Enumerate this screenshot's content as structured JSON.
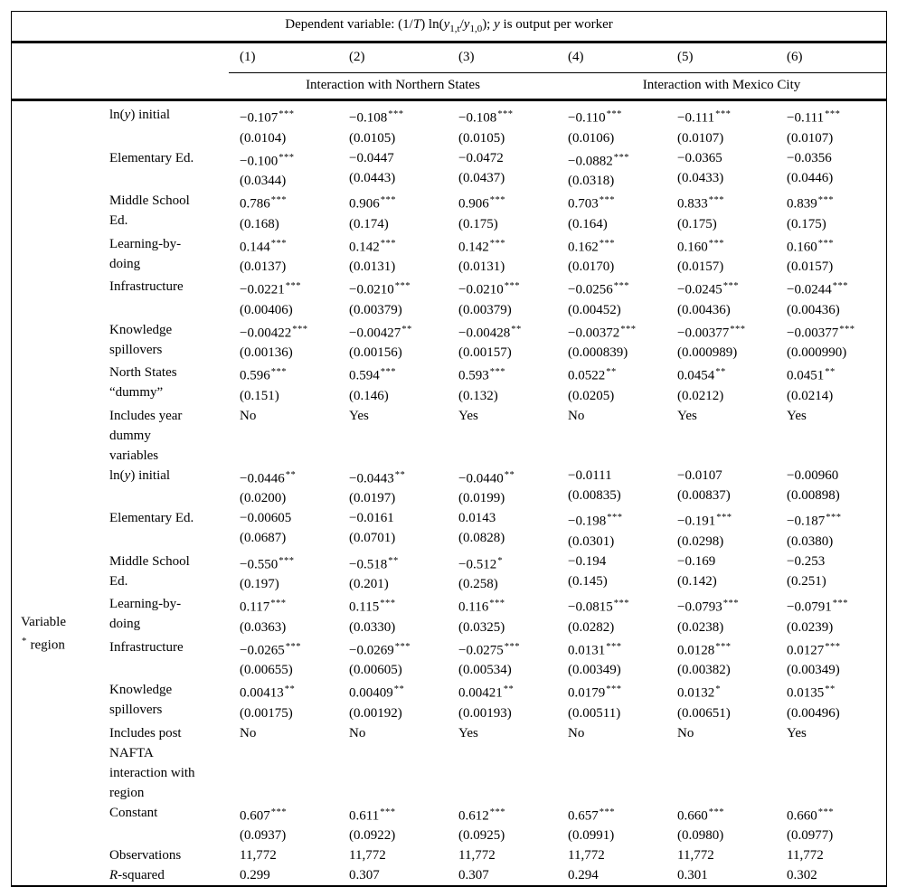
{
  "table": {
    "title_segments": [
      "Dependent variable: (1/",
      {
        "i": "T"
      },
      ") ln(",
      {
        "i": "y"
      },
      {
        "sub": "1,t"
      },
      "/",
      {
        "i": "y"
      },
      {
        "sub": "1,0"
      },
      "); ",
      {
        "i": "y"
      },
      " is output per worker"
    ],
    "column_numbers": [
      "(1)",
      "(2)",
      "(3)",
      "(4)",
      "(5)",
      "(6)"
    ],
    "group_headers": [
      {
        "label": "Interaction with Northern States",
        "span": 3
      },
      {
        "label": "Interaction with Mexico City",
        "span": 3
      }
    ],
    "sections": [
      {
        "side_label_lines": [],
        "rows": [
          {
            "kind": "coef",
            "label_lines": [
              [
                "ln(",
                {
                  "i": "y"
                },
                ") initial"
              ]
            ],
            "coefs": [
              {
                "v": "−0.107",
                "stars": "***"
              },
              {
                "v": "−0.108",
                "stars": "***"
              },
              {
                "v": "−0.108",
                "stars": "***"
              },
              {
                "v": "−0.110",
                "stars": "***"
              },
              {
                "v": "−0.111",
                "stars": "***"
              },
              {
                "v": "−0.111",
                "stars": "***"
              }
            ],
            "ses": [
              "(0.0104)",
              "(0.0105)",
              "(0.0105)",
              "(0.0106)",
              "(0.0107)",
              "(0.0107)"
            ]
          },
          {
            "kind": "coef",
            "label_lines": [
              "Elementary Ed."
            ],
            "coefs": [
              {
                "v": "−0.100",
                "stars": "***"
              },
              {
                "v": "−0.0447",
                "stars": ""
              },
              {
                "v": "−0.0472",
                "stars": ""
              },
              {
                "v": "−0.0882",
                "stars": "***"
              },
              {
                "v": "−0.0365",
                "stars": ""
              },
              {
                "v": "−0.0356",
                "stars": ""
              }
            ],
            "ses": [
              "(0.0344)",
              "(0.0443)",
              "(0.0437)",
              "(0.0318)",
              "(0.0433)",
              "(0.0446)"
            ]
          },
          {
            "kind": "coef",
            "label_lines": [
              "Middle School",
              "Ed."
            ],
            "coefs": [
              {
                "v": "0.786",
                "stars": "***"
              },
              {
                "v": "0.906",
                "stars": "***"
              },
              {
                "v": "0.906",
                "stars": "***"
              },
              {
                "v": "0.703",
                "stars": "***"
              },
              {
                "v": "0.833",
                "stars": "***"
              },
              {
                "v": "0.839",
                "stars": "***"
              }
            ],
            "ses": [
              "(0.168)",
              "(0.174)",
              "(0.175)",
              "(0.164)",
              "(0.175)",
              "(0.175)"
            ]
          },
          {
            "kind": "coef",
            "label_lines": [
              "Learning-by-",
              "doing"
            ],
            "coefs": [
              {
                "v": "0.144",
                "stars": "***"
              },
              {
                "v": "0.142",
                "stars": "***"
              },
              {
                "v": "0.142",
                "stars": "***"
              },
              {
                "v": "0.162",
                "stars": "***"
              },
              {
                "v": "0.160",
                "stars": "***"
              },
              {
                "v": "0.160",
                "stars": "***"
              }
            ],
            "ses": [
              "(0.0137)",
              "(0.0131)",
              "(0.0131)",
              "(0.0170)",
              "(0.0157)",
              "(0.0157)"
            ]
          },
          {
            "kind": "coef",
            "label_lines": [
              "Infrastructure"
            ],
            "coefs": [
              {
                "v": "−0.0221",
                "stars": "***"
              },
              {
                "v": "−0.0210",
                "stars": "***"
              },
              {
                "v": "−0.0210",
                "stars": "***"
              },
              {
                "v": "−0.0256",
                "stars": "***"
              },
              {
                "v": "−0.0245",
                "stars": "***"
              },
              {
                "v": "−0.0244",
                "stars": "***"
              }
            ],
            "ses": [
              "(0.00406)",
              "(0.00379)",
              "(0.00379)",
              "(0.00452)",
              "(0.00436)",
              "(0.00436)"
            ]
          },
          {
            "kind": "coef",
            "label_lines": [
              "Knowledge",
              "spillovers"
            ],
            "coefs": [
              {
                "v": "−0.00422",
                "stars": "***"
              },
              {
                "v": "−0.00427",
                "stars": "**"
              },
              {
                "v": "−0.00428",
                "stars": "**"
              },
              {
                "v": "−0.00372",
                "stars": "***"
              },
              {
                "v": "−0.00377",
                "stars": "***"
              },
              {
                "v": "−0.00377",
                "stars": "***"
              }
            ],
            "ses": [
              "(0.00136)",
              "(0.00156)",
              "(0.00157)",
              "(0.000839)",
              "(0.000989)",
              "(0.000990)"
            ]
          },
          {
            "kind": "coef",
            "label_lines": [
              "North States",
              "“dummy”"
            ],
            "coefs": [
              {
                "v": "0.596",
                "stars": "***"
              },
              {
                "v": "0.594",
                "stars": "***"
              },
              {
                "v": "0.593",
                "stars": "***"
              },
              {
                "v": "0.0522",
                "stars": "**"
              },
              {
                "v": "0.0454",
                "stars": "**"
              },
              {
                "v": "0.0451",
                "stars": "**"
              }
            ],
            "ses": [
              "(0.151)",
              "(0.146)",
              "(0.132)",
              "(0.0205)",
              "(0.0212)",
              "(0.0214)"
            ]
          },
          {
            "kind": "flag",
            "label_lines": [
              "Includes year",
              "dummy",
              "variables"
            ],
            "values": [
              "No",
              "Yes",
              "Yes",
              "No",
              "Yes",
              "Yes"
            ]
          }
        ]
      },
      {
        "side_label_lines": [
          [
            "Variable"
          ],
          [
            {
              "sup": "*"
            },
            " region"
          ]
        ],
        "rows": [
          {
            "kind": "coef",
            "label_lines": [
              [
                "ln(",
                {
                  "i": "y"
                },
                ") initial"
              ]
            ],
            "coefs": [
              {
                "v": "−0.0446",
                "stars": "**"
              },
              {
                "v": "−0.0443",
                "stars": "**"
              },
              {
                "v": "−0.0440",
                "stars": "**"
              },
              {
                "v": "−0.0111",
                "stars": ""
              },
              {
                "v": "−0.0107",
                "stars": ""
              },
              {
                "v": "−0.00960",
                "stars": ""
              }
            ],
            "ses": [
              "(0.0200)",
              "(0.0197)",
              "(0.0199)",
              "(0.00835)",
              "(0.00837)",
              "(0.00898)"
            ]
          },
          {
            "kind": "coef",
            "label_lines": [
              "Elementary Ed."
            ],
            "coefs": [
              {
                "v": "−0.00605",
                "stars": ""
              },
              {
                "v": "−0.0161",
                "stars": ""
              },
              {
                "v": "0.0143",
                "stars": ""
              },
              {
                "v": "−0.198",
                "stars": "***"
              },
              {
                "v": "−0.191",
                "stars": "***"
              },
              {
                "v": "−0.187",
                "stars": "***"
              }
            ],
            "ses": [
              "(0.0687)",
              "(0.0701)",
              "(0.0828)",
              "(0.0301)",
              "(0.0298)",
              "(0.0380)"
            ]
          },
          {
            "kind": "coef",
            "label_lines": [
              "Middle School",
              "Ed."
            ],
            "coefs": [
              {
                "v": "−0.550",
                "stars": "***"
              },
              {
                "v": "−0.518",
                "stars": "**"
              },
              {
                "v": "−0.512",
                "stars": "*"
              },
              {
                "v": "−0.194",
                "stars": ""
              },
              {
                "v": "−0.169",
                "stars": ""
              },
              {
                "v": "−0.253",
                "stars": ""
              }
            ],
            "ses": [
              "(0.197)",
              "(0.201)",
              "(0.258)",
              "(0.145)",
              "(0.142)",
              "(0.251)"
            ]
          },
          {
            "kind": "coef",
            "label_lines": [
              "Learning-by-",
              "doing"
            ],
            "coefs": [
              {
                "v": "0.117",
                "stars": "***"
              },
              {
                "v": "0.115",
                "stars": "***"
              },
              {
                "v": "0.116",
                "stars": "***"
              },
              {
                "v": "−0.0815",
                "stars": "***"
              },
              {
                "v": "−0.0793",
                "stars": "***"
              },
              {
                "v": "−0.0791",
                "stars": "***"
              }
            ],
            "ses": [
              "(0.0363)",
              "(0.0330)",
              "(0.0325)",
              "(0.0282)",
              "(0.0238)",
              "(0.0239)"
            ]
          },
          {
            "kind": "coef",
            "label_lines": [
              "Infrastructure"
            ],
            "coefs": [
              {
                "v": "−0.0265",
                "stars": "***"
              },
              {
                "v": "−0.0269",
                "stars": "***"
              },
              {
                "v": "−0.0275",
                "stars": "***"
              },
              {
                "v": "0.0131",
                "stars": "***"
              },
              {
                "v": "0.0128",
                "stars": "***"
              },
              {
                "v": "0.0127",
                "stars": "***"
              }
            ],
            "ses": [
              "(0.00655)",
              "(0.00605)",
              "(0.00534)",
              "(0.00349)",
              "(0.00382)",
              "(0.00349)"
            ]
          },
          {
            "kind": "coef",
            "label_lines": [
              "Knowledge",
              "spillovers"
            ],
            "coefs": [
              {
                "v": "0.00413",
                "stars": "**"
              },
              {
                "v": "0.00409",
                "stars": "**"
              },
              {
                "v": "0.00421",
                "stars": "**"
              },
              {
                "v": "0.0179",
                "stars": "***"
              },
              {
                "v": "0.0132",
                "stars": "*"
              },
              {
                "v": "0.0135",
                "stars": "**"
              }
            ],
            "ses": [
              "(0.00175)",
              "(0.00192)",
              "(0.00193)",
              "(0.00511)",
              "(0.00651)",
              "(0.00496)"
            ]
          },
          {
            "kind": "flag",
            "label_lines": [
              "Includes post",
              "NAFTA",
              "interaction with",
              "region"
            ],
            "values": [
              "No",
              "No",
              "Yes",
              "No",
              "No",
              "Yes"
            ]
          }
        ]
      },
      {
        "side_label_lines": [],
        "rows": [
          {
            "kind": "coef",
            "label_lines": [
              "Constant"
            ],
            "coefs": [
              {
                "v": "0.607",
                "stars": "***"
              },
              {
                "v": "0.611",
                "stars": "***"
              },
              {
                "v": "0.612",
                "stars": "***"
              },
              {
                "v": "0.657",
                "stars": "***"
              },
              {
                "v": "0.660",
                "stars": "***"
              },
              {
                "v": "0.660",
                "stars": "***"
              }
            ],
            "ses": [
              "(0.0937)",
              "(0.0922)",
              "(0.0925)",
              "(0.0991)",
              "(0.0980)",
              "(0.0977)"
            ]
          },
          {
            "kind": "plain",
            "label_lines": [
              "Observations"
            ],
            "values": [
              "11,772",
              "11,772",
              "11,772",
              "11,772",
              "11,772",
              "11,772"
            ]
          },
          {
            "kind": "plain",
            "label_lines": [
              [
                {
                  "i": "R"
                },
                "-squared"
              ]
            ],
            "values": [
              "0.299",
              "0.307",
              "0.307",
              "0.294",
              "0.301",
              "0.302"
            ]
          }
        ]
      }
    ]
  }
}
